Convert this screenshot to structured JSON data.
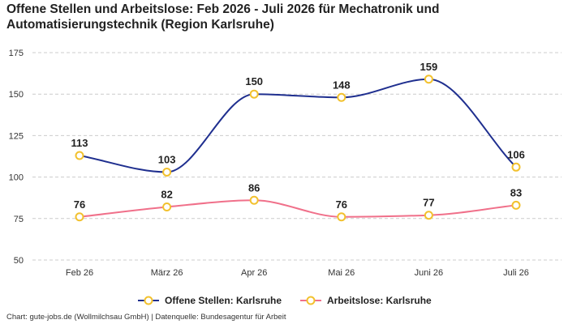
{
  "title": "Offene Stellen und Arbeitslose: Feb 2026 - Juli 2026 für Mechatronik und Automatisierungstechnik (Region Karlsruhe)",
  "source": "Chart: gute-jobs.de (Wollmilchsau GmbH) | Datenquelle: Bundesagentur für Arbeit",
  "chart_data": {
    "type": "line",
    "title": "Offene Stellen und Arbeitslose: Feb 2026 - Juli 2026 für Mechatronik und Automatisierungstechnik (Region Karlsruhe)",
    "categories": [
      "Feb 26",
      "März 26",
      "Apr 26",
      "Mai 26",
      "Juni 26",
      "Juli 26"
    ],
    "yticks": [
      50,
      75,
      100,
      125,
      150,
      175
    ],
    "ylim": [
      50,
      175
    ],
    "grid": true,
    "legend_position": "bottom",
    "series": [
      {
        "name": "Offene Stellen: Karlsruhe",
        "values": [
          113,
          103,
          150,
          148,
          159,
          106
        ],
        "color": "#1f2f8f"
      },
      {
        "name": "Arbeitslose: Karlsruhe",
        "values": [
          76,
          82,
          86,
          76,
          77,
          83
        ],
        "color": "#f0708a"
      }
    ],
    "marker_color": "#f2c12e",
    "gridline_color": "#cccccc"
  }
}
